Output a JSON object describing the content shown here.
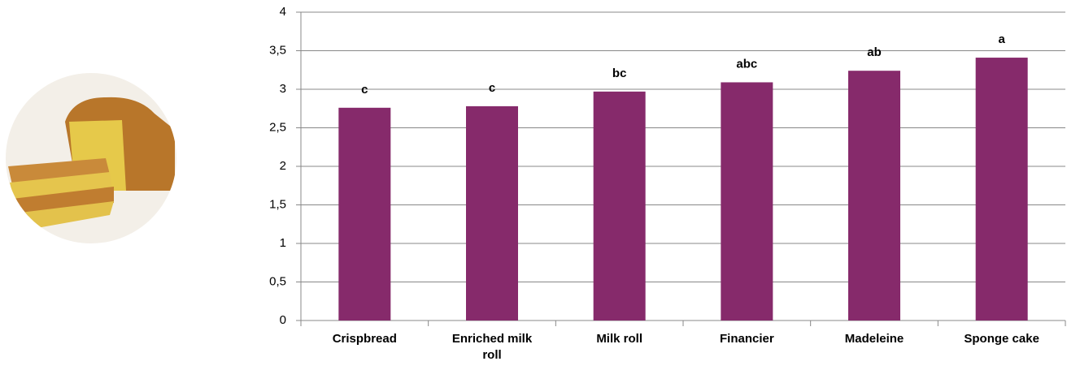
{
  "chart_data": {
    "type": "bar",
    "categories": [
      "Crispbread",
      "Enriched milk roll",
      "Milk roll",
      "Financier",
      "Madeleine",
      "Sponge cake"
    ],
    "values": [
      2.76,
      2.78,
      2.97,
      3.09,
      3.24,
      3.41
    ],
    "annotations": [
      "c",
      "c",
      "bc",
      "abc",
      "ab",
      "a"
    ],
    "color": "#862a6b",
    "ylim": [
      0,
      4
    ],
    "yticks": [
      0,
      {
        "value": 0.5,
        "label": "0,5"
      },
      1,
      {
        "value": 1.5,
        "label": "1,5"
      },
      2,
      {
        "value": 2.5,
        "label": "2,5"
      },
      3,
      {
        "value": 3.5,
        "label": "3,5"
      },
      4
    ],
    "grid": true
  }
}
